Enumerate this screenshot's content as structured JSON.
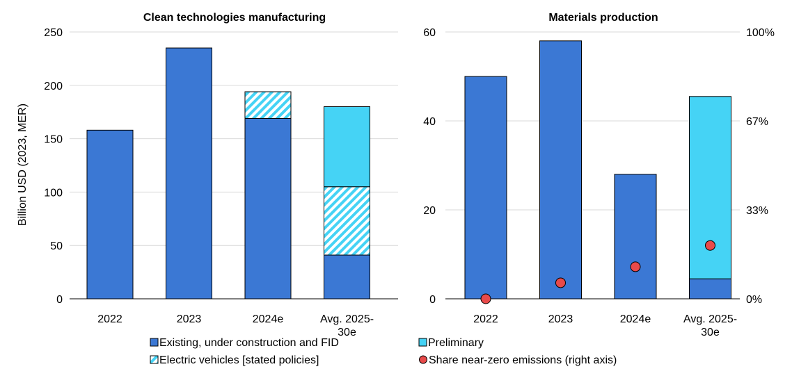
{
  "chart_data": [
    {
      "type": "bar",
      "title": "Clean technologies manufacturing",
      "ylabel": "Billion USD (2023, MER)",
      "ylim": [
        0,
        250
      ],
      "yticks": [
        0,
        50,
        100,
        150,
        200,
        250
      ],
      "stacked": true,
      "categories": [
        "2022",
        "2023",
        "2024e",
        "Avg. 2025-30e"
      ],
      "category_lines": [
        [
          "2022"
        ],
        [
          "2023"
        ],
        [
          "2024e"
        ],
        [
          "Avg. 2025-",
          "30e"
        ]
      ],
      "series": [
        {
          "name": "Existing, under construction and FID",
          "values": [
            158,
            235,
            169,
            41
          ]
        },
        {
          "name": "Electric vehicles [stated policies]",
          "values": [
            0,
            0,
            25,
            64
          ]
        },
        {
          "name": "Preliminary",
          "values": [
            0,
            0,
            0,
            75
          ]
        }
      ]
    },
    {
      "type": "bar",
      "title": "Materials production",
      "ylim": [
        0,
        60
      ],
      "yticks": [
        0,
        20,
        40,
        60
      ],
      "y2lim": [
        0,
        1
      ],
      "y2ticks": [
        "0%",
        "33%",
        "67%",
        "100%"
      ],
      "stacked": true,
      "categories": [
        "2022",
        "2023",
        "2024e",
        "Avg. 2025-30e"
      ],
      "category_lines": [
        [
          "2022"
        ],
        [
          "2023"
        ],
        [
          "2024e"
        ],
        [
          "Avg. 2025-",
          "30e"
        ]
      ],
      "series": [
        {
          "name": "Existing, under construction and FID",
          "values": [
            50,
            58,
            28,
            4.5
          ]
        },
        {
          "name": "Preliminary",
          "values": [
            0,
            0,
            0,
            41
          ]
        },
        {
          "name": "Share near-zero emissions (right axis)",
          "axis": "right",
          "values": [
            0.0,
            0.06,
            0.12,
            0.2
          ]
        }
      ]
    }
  ],
  "legend": [
    {
      "label": "Existing, under construction and FID",
      "swatch": "solid-blue"
    },
    {
      "label": "Preliminary",
      "swatch": "solid-cyan"
    },
    {
      "label": "Electric vehicles [stated policies]",
      "swatch": "hatch"
    },
    {
      "label": "Share near-zero emissions (right axis)",
      "swatch": "dot"
    }
  ],
  "colors": {
    "existing": "#3b78d4",
    "preliminary": "#45d3f5",
    "ev_hatch_bg": "#ffffff",
    "ev_hatch_stripe": "#45d3f5",
    "share_dot": "#e84a4a",
    "grid": "#d9d9d9"
  }
}
